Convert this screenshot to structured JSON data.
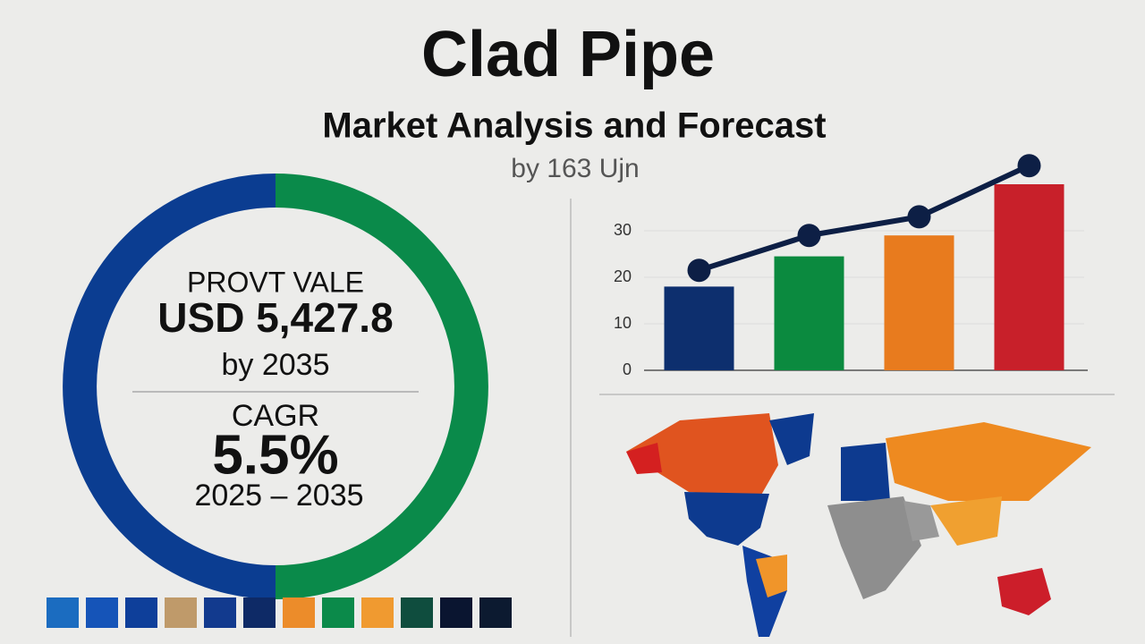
{
  "header": {
    "title": "Clad Pipe",
    "subtitle": "Market Analysis and Forecast",
    "byline": "by 163 Ujn"
  },
  "summary": {
    "value_label": "PROVT VALE",
    "value": "USD 5,427.8",
    "value_year": "by 2035",
    "cagr_label": "CAGR",
    "cagr": "5.5%",
    "period": "2025 – 2035"
  },
  "chart_data": [
    {
      "type": "donut",
      "categories": [
        null,
        null
      ],
      "values": [
        50,
        50
      ],
      "colors": [
        "#0a8a4a",
        "#0b3d91"
      ]
    },
    {
      "type": "bar",
      "categories": [
        null,
        null,
        null,
        null
      ],
      "values": [
        18,
        24.5,
        29,
        40
      ],
      "colors": [
        "#0d2f6e",
        "#0b8a3f",
        "#e87b1e",
        "#c8202a"
      ],
      "ylim": [
        0,
        45
      ],
      "yticks": [
        0,
        10,
        20,
        30
      ],
      "grid": true
    },
    {
      "type": "line",
      "categories": [
        null,
        null,
        null,
        null
      ],
      "values": [
        21.5,
        29,
        33,
        44
      ],
      "color": "#0d1f45",
      "ylim": [
        0,
        45
      ]
    }
  ]
}
